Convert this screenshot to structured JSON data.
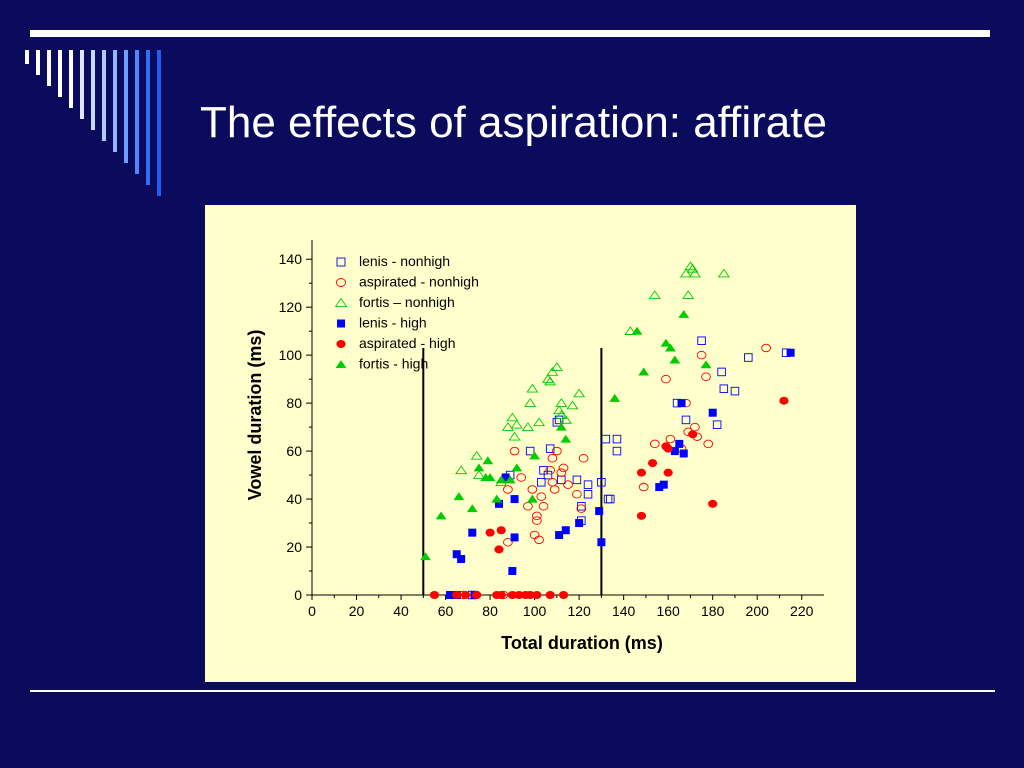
{
  "slide": {
    "title": "The effects of aspiration: affirate"
  },
  "colors": {
    "background": "#0b0b5e",
    "panel": "#ffffcc",
    "blue": "#0000ff",
    "red": "#ff0000",
    "green": "#00cc00",
    "accent_bars": [
      "#ffffff",
      "#ffffff",
      "#ffffff",
      "#ffffff",
      "#ffffff",
      "#dde8ff",
      "#c8daff",
      "#b0caff",
      "#90b4ff",
      "#6f9cff",
      "#5088ff",
      "#3070f5",
      "#1f5ff0"
    ]
  },
  "chart_data": {
    "type": "scatter",
    "xlabel": "Total duration (ms)",
    "ylabel": "Vowel duration (ms)",
    "xlim": [
      0,
      230
    ],
    "ylim": [
      0,
      148
    ],
    "x_ticks": [
      0,
      20,
      40,
      60,
      80,
      100,
      120,
      140,
      160,
      180,
      200,
      220
    ],
    "y_ticks": [
      0,
      20,
      40,
      60,
      80,
      100,
      120,
      140
    ],
    "reference_lines_x": [
      50,
      130
    ],
    "legend_position": "top-left",
    "series": [
      {
        "name": "lenis - nonhigh",
        "marker": "square-open",
        "color": "#0000ff",
        "points": [
          [
            72,
            0
          ],
          [
            89,
            50
          ],
          [
            98,
            60
          ],
          [
            103,
            47
          ],
          [
            104,
            52
          ],
          [
            106,
            50
          ],
          [
            107,
            61
          ],
          [
            110,
            72
          ],
          [
            111,
            73
          ],
          [
            112,
            48
          ],
          [
            119,
            48
          ],
          [
            121,
            31
          ],
          [
            121,
            37
          ],
          [
            124,
            46
          ],
          [
            124,
            42
          ],
          [
            130,
            47
          ],
          [
            132,
            65
          ],
          [
            133,
            40
          ],
          [
            134,
            40
          ],
          [
            137,
            65
          ],
          [
            137,
            60
          ],
          [
            164,
            80
          ],
          [
            168,
            73
          ],
          [
            175,
            106
          ],
          [
            182,
            71
          ],
          [
            184,
            93
          ],
          [
            185,
            86
          ],
          [
            190,
            85
          ],
          [
            196,
            99
          ],
          [
            213,
            101
          ]
        ]
      },
      {
        "name": "aspirated - nonhigh",
        "marker": "circle-open",
        "color": "#ff0000",
        "points": [
          [
            68,
            0
          ],
          [
            86,
            0
          ],
          [
            88,
            22
          ],
          [
            88,
            44
          ],
          [
            91,
            60
          ],
          [
            94,
            49
          ],
          [
            97,
            37
          ],
          [
            99,
            44
          ],
          [
            100,
            25
          ],
          [
            101,
            31
          ],
          [
            101,
            33
          ],
          [
            102,
            23
          ],
          [
            103,
            41
          ],
          [
            104,
            37
          ],
          [
            107,
            52
          ],
          [
            108,
            57
          ],
          [
            108,
            47
          ],
          [
            109,
            44
          ],
          [
            110,
            60
          ],
          [
            112,
            51
          ],
          [
            113,
            53
          ],
          [
            115,
            46
          ],
          [
            119,
            42
          ],
          [
            121,
            36
          ],
          [
            122,
            57
          ],
          [
            149,
            45
          ],
          [
            154,
            63
          ],
          [
            159,
            90
          ],
          [
            161,
            65
          ],
          [
            166,
            61
          ],
          [
            168,
            80
          ],
          [
            169,
            68
          ],
          [
            172,
            70
          ],
          [
            173,
            66
          ],
          [
            175,
            100
          ],
          [
            177,
            91
          ],
          [
            178,
            63
          ],
          [
            204,
            103
          ]
        ]
      },
      {
        "name": "fortis – nonhigh",
        "marker": "triangle-open",
        "color": "#00cc00",
        "points": [
          [
            67,
            52
          ],
          [
            74,
            58
          ],
          [
            75,
            50
          ],
          [
            85,
            47
          ],
          [
            88,
            70
          ],
          [
            90,
            74
          ],
          [
            91,
            66
          ],
          [
            92,
            71
          ],
          [
            97,
            70
          ],
          [
            98,
            80
          ],
          [
            99,
            86
          ],
          [
            102,
            72
          ],
          [
            106,
            90
          ],
          [
            107,
            89
          ],
          [
            108,
            93
          ],
          [
            110,
            95
          ],
          [
            111,
            77
          ],
          [
            112,
            75
          ],
          [
            112,
            80
          ],
          [
            114,
            73
          ],
          [
            117,
            79
          ],
          [
            120,
            84
          ],
          [
            143,
            110
          ],
          [
            154,
            125
          ],
          [
            168,
            134
          ],
          [
            169,
            125
          ],
          [
            170,
            137
          ],
          [
            171,
            136
          ],
          [
            172,
            134
          ],
          [
            185,
            134
          ]
        ]
      },
      {
        "name": "lenis - high",
        "marker": "square-filled",
        "color": "#0000ff",
        "points": [
          [
            62,
            0
          ],
          [
            65,
            0
          ],
          [
            73,
            0
          ],
          [
            65,
            17
          ],
          [
            67,
            15
          ],
          [
            72,
            26
          ],
          [
            84,
            38
          ],
          [
            87,
            49
          ],
          [
            90,
            10
          ],
          [
            91,
            24
          ],
          [
            91,
            40
          ],
          [
            111,
            25
          ],
          [
            114,
            27
          ],
          [
            120,
            30
          ],
          [
            129,
            35
          ],
          [
            130,
            22
          ],
          [
            156,
            45
          ],
          [
            158,
            46
          ],
          [
            163,
            60
          ],
          [
            165,
            63
          ],
          [
            166,
            80
          ],
          [
            167,
            59
          ],
          [
            180,
            76
          ],
          [
            215,
            101
          ]
        ]
      },
      {
        "name": "aspirated - high",
        "marker": "circle-filled",
        "color": "#ff0000",
        "points": [
          [
            55,
            0
          ],
          [
            65,
            0
          ],
          [
            69,
            0
          ],
          [
            74,
            0
          ],
          [
            83,
            0
          ],
          [
            85,
            0
          ],
          [
            90,
            0
          ],
          [
            93,
            0
          ],
          [
            96,
            0
          ],
          [
            98,
            0
          ],
          [
            101,
            0
          ],
          [
            107,
            0
          ],
          [
            113,
            0
          ],
          [
            80,
            26
          ],
          [
            84,
            19
          ],
          [
            85,
            27
          ],
          [
            148,
            33
          ],
          [
            148,
            51
          ],
          [
            153,
            55
          ],
          [
            159,
            62
          ],
          [
            160,
            51
          ],
          [
            160,
            61
          ],
          [
            171,
            67
          ],
          [
            180,
            38
          ],
          [
            212,
            81
          ]
        ]
      },
      {
        "name": "fortis - high",
        "marker": "triangle-filled",
        "color": "#00cc00",
        "points": [
          [
            51,
            16
          ],
          [
            58,
            33
          ],
          [
            66,
            41
          ],
          [
            72,
            36
          ],
          [
            75,
            53
          ],
          [
            78,
            49
          ],
          [
            79,
            56
          ],
          [
            80,
            49
          ],
          [
            83,
            40
          ],
          [
            85,
            48
          ],
          [
            89,
            48
          ],
          [
            92,
            53
          ],
          [
            99,
            40
          ],
          [
            100,
            58
          ],
          [
            112,
            70
          ],
          [
            114,
            65
          ],
          [
            136,
            82
          ],
          [
            146,
            110
          ],
          [
            149,
            93
          ],
          [
            159,
            105
          ],
          [
            161,
            103
          ],
          [
            163,
            98
          ],
          [
            167,
            117
          ],
          [
            177,
            96
          ]
        ]
      }
    ]
  }
}
